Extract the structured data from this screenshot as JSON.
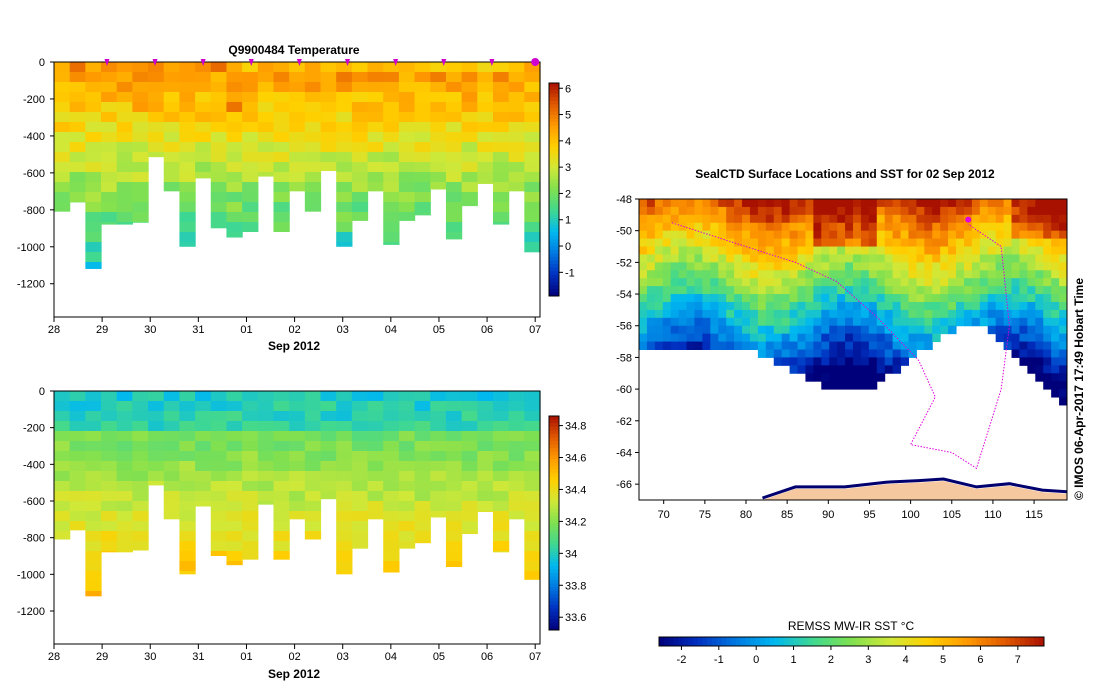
{
  "chart_data": [
    {
      "type": "heatmap",
      "title": "Q9900484  Temperature",
      "xlabel": "Sep 2012",
      "ylabel": "",
      "x_tick_labels": [
        "28",
        "29",
        "30",
        "31",
        "01",
        "02",
        "03",
        "04",
        "05",
        "06",
        "07"
      ],
      "y_ticks": [
        0,
        -200,
        -400,
        -600,
        -800,
        -1000,
        -1200
      ],
      "ylim": [
        -1380,
        0
      ],
      "colorbar": {
        "ticks": [
          6,
          5,
          4,
          3,
          2,
          1,
          0,
          -1
        ],
        "range": [
          -1.9,
          6.2
        ]
      },
      "profile_markers_at_days": [
        1.1,
        2.1,
        3.1,
        4.1,
        5.1,
        6.1,
        7.1,
        8.1,
        9.1,
        10.0
      ],
      "profile_max_depths_m": [
        810,
        760,
        1120,
        880,
        880,
        870,
        515,
        700,
        1000,
        630,
        900,
        950,
        920,
        620,
        920,
        700,
        810,
        590,
        1000,
        860,
        700,
        990,
        860,
        830,
        690,
        960,
        780,
        660,
        880,
        700,
        1030
      ]
    },
    {
      "type": "heatmap",
      "title": "",
      "xlabel": "Sep 2012",
      "ylabel": "",
      "x_tick_labels": [
        "28",
        "29",
        "30",
        "31",
        "01",
        "02",
        "03",
        "04",
        "05",
        "06",
        "07"
      ],
      "y_ticks": [
        0,
        -200,
        -400,
        -600,
        -800,
        -1000,
        -1200
      ],
      "ylim": [
        -1380,
        0
      ],
      "colorbar": {
        "ticks": [
          34.8,
          34.6,
          34.4,
          34.2,
          34,
          33.8,
          33.6
        ],
        "range": [
          33.52,
          34.86
        ]
      }
    },
    {
      "type": "heatmap",
      "title": "SealCTD Surface Locations and SST for 02 Sep 2012",
      "x_tick_labels": [
        "70",
        "75",
        "80",
        "85",
        "90",
        "95",
        "100",
        "105",
        "110",
        "115"
      ],
      "y_tick_labels": [
        "-48",
        "-50",
        "-52",
        "-54",
        "-56",
        "-58",
        "-60",
        "-62",
        "-64",
        "-66"
      ],
      "xlim": [
        67,
        119
      ],
      "ylim": [
        -67,
        -48
      ],
      "colorbar": {
        "label": "REMSS MW-IR SST °C",
        "ticks": [
          -2,
          -1,
          0,
          1,
          2,
          3,
          4,
          5,
          6,
          7
        ],
        "range": [
          -2.6,
          7.7
        ]
      },
      "credit": "© IMOS 06-Apr-2017 17:49 Hobart Time"
    }
  ],
  "colors": {
    "palette": [
      "#00007a",
      "#0030c0",
      "#0078e0",
      "#00b8f0",
      "#40d890",
      "#80e050",
      "#d0e838",
      "#ffd000",
      "#ff9a00",
      "#e05800",
      "#a81000"
    ],
    "land": "#f5c8a0",
    "ice_edge": "#00006e",
    "track": "#e000e0"
  }
}
